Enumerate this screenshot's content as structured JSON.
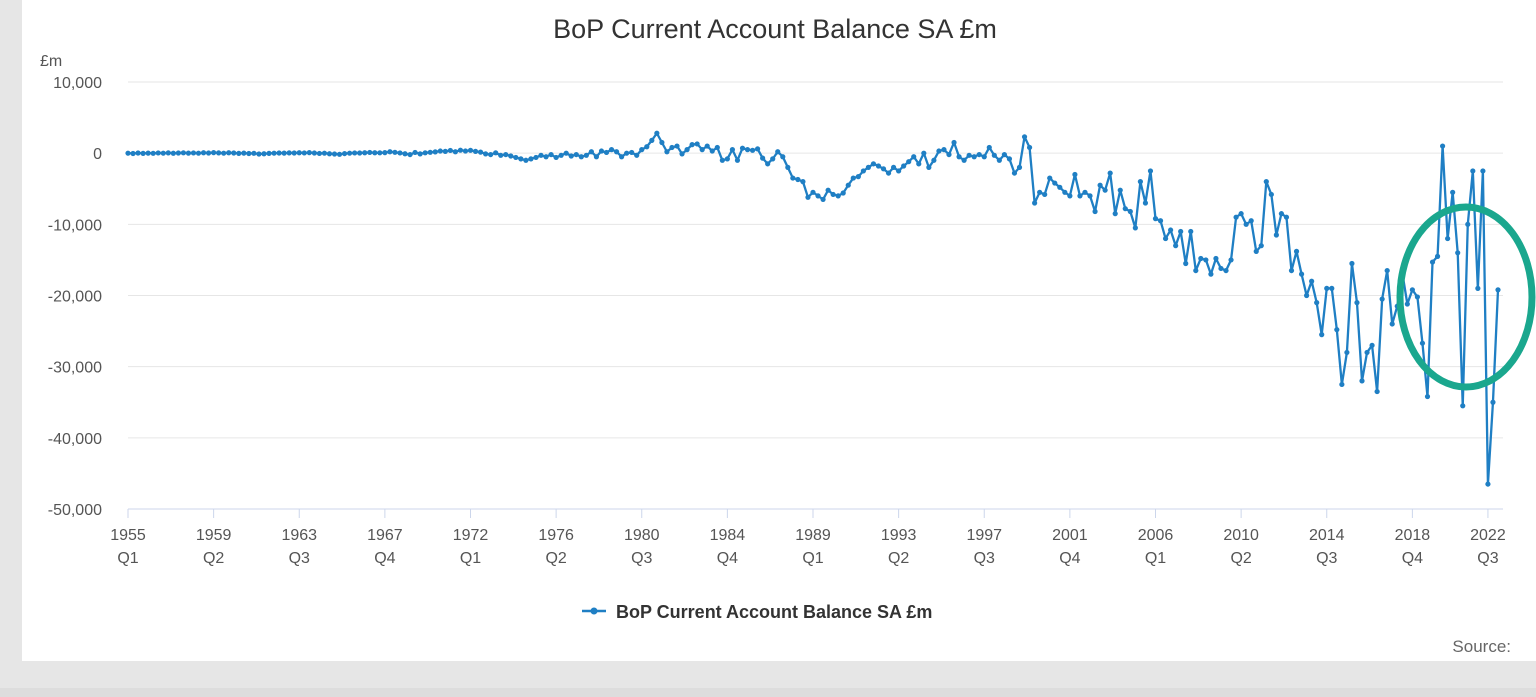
{
  "chart_data": {
    "type": "line",
    "title": "BoP Current Account Balance SA £m",
    "ylabel": "£m",
    "xlabel": "",
    "source_label": "Source:",
    "ylim": [
      -50000,
      10000
    ],
    "y_ticks": [
      10000,
      0,
      -10000,
      -20000,
      -30000,
      -40000,
      -50000
    ],
    "y_tick_labels": [
      "10,000",
      "0",
      "-10,000",
      "-20,000",
      "-30,000",
      "-40,000",
      "-50,000"
    ],
    "x_tick_labels": [
      {
        "year": "1955",
        "quarter": "Q1",
        "index": 0
      },
      {
        "year": "1959",
        "quarter": "Q2",
        "index": 17
      },
      {
        "year": "1963",
        "quarter": "Q3",
        "index": 34
      },
      {
        "year": "1967",
        "quarter": "Q4",
        "index": 51
      },
      {
        "year": "1972",
        "quarter": "Q1",
        "index": 68
      },
      {
        "year": "1976",
        "quarter": "Q2",
        "index": 85
      },
      {
        "year": "1980",
        "quarter": "Q3",
        "index": 102
      },
      {
        "year": "1984",
        "quarter": "Q4",
        "index": 119
      },
      {
        "year": "1989",
        "quarter": "Q1",
        "index": 136
      },
      {
        "year": "1993",
        "quarter": "Q2",
        "index": 153
      },
      {
        "year": "1997",
        "quarter": "Q3",
        "index": 170
      },
      {
        "year": "2001",
        "quarter": "Q4",
        "index": 187
      },
      {
        "year": "2006",
        "quarter": "Q1",
        "index": 204
      },
      {
        "year": "2010",
        "quarter": "Q2",
        "index": 221
      },
      {
        "year": "2014",
        "quarter": "Q3",
        "index": 238
      },
      {
        "year": "2018",
        "quarter": "Q4",
        "index": 255
      },
      {
        "year": "2022",
        "quarter": "Q3",
        "index": 270
      }
    ],
    "grid": "horizontal",
    "legend_position": "bottom-center",
    "series": [
      {
        "name": "BoP Current Account Balance SA £m",
        "color": "#1f7fc4",
        "start_period": "1955 Q1",
        "end_period": "2022 Q4",
        "values": [
          0,
          -50,
          20,
          -30,
          10,
          -20,
          30,
          0,
          40,
          -10,
          20,
          50,
          10,
          30,
          0,
          60,
          20,
          80,
          40,
          0,
          60,
          20,
          -30,
          10,
          -50,
          -20,
          -120,
          -80,
          -30,
          0,
          20,
          10,
          40,
          20,
          60,
          30,
          80,
          20,
          -40,
          0,
          -80,
          -120,
          -160,
          -60,
          0,
          30,
          20,
          60,
          100,
          60,
          50,
          80,
          200,
          120,
          30,
          -80,
          -200,
          100,
          -100,
          50,
          120,
          180,
          300,
          250,
          380,
          200,
          420,
          300,
          400,
          250,
          150,
          -100,
          -200,
          50,
          -300,
          -200,
          -400,
          -600,
          -800,
          -1000,
          -800,
          -600,
          -300,
          -500,
          -200,
          -600,
          -300,
          0,
          -400,
          -200,
          -500,
          -300,
          200,
          -500,
          300,
          100,
          500,
          200,
          -500,
          0,
          100,
          -300,
          500,
          900,
          1800,
          2800,
          1500,
          200,
          800,
          1000,
          -100,
          500,
          1200,
          1300,
          500,
          1000,
          300,
          800,
          -1000,
          -800,
          500,
          -1000,
          700,
          500,
          400,
          600,
          -700,
          -1500,
          -800,
          200,
          -500,
          -2000,
          -3500,
          -3700,
          -4000,
          -6200,
          -5500,
          -6000,
          -6500,
          -5200,
          -5800,
          -6000,
          -5600,
          -4500,
          -3500,
          -3300,
          -2500,
          -2000,
          -1500,
          -1800,
          -2200,
          -2800,
          -2000,
          -2500,
          -1800,
          -1200,
          -500,
          -1500,
          0,
          -2000,
          -1000,
          300,
          500,
          -200,
          1500,
          -500,
          -1000,
          -300,
          -500,
          -200,
          -500,
          800,
          -300,
          -1000,
          -200,
          -800,
          -2800,
          -2000,
          2300,
          800,
          -7000,
          -5500,
          -5800,
          -3500,
          -4200,
          -4800,
          -5500,
          -6000,
          -3000,
          -6000,
          -5500,
          -6000,
          -8200,
          -4500,
          -5200,
          -2800,
          -8500,
          -5200,
          -7800,
          -8200,
          -10500,
          -4000,
          -7000,
          -2500,
          -9200,
          -9500,
          -12000,
          -10800,
          -13000,
          -11000,
          -15500,
          -11000,
          -16500,
          -14800,
          -15000,
          -17000,
          -14800,
          -16200,
          -16500,
          -15000,
          -9000,
          -8500,
          -10000,
          -9500,
          -13800,
          -13000,
          -4000,
          -5800,
          -11500,
          -8500,
          -9000,
          -16500,
          -13800,
          -17000,
          -20000,
          -18000,
          -21000,
          -25500,
          -19000,
          -19000,
          -24800,
          -32500,
          -28000,
          -15500,
          -21000,
          -32000,
          -28000,
          -27000,
          -33500,
          -20500,
          -16500,
          -24000,
          -21500,
          -16800,
          -21200,
          -19200,
          -20200,
          -26700,
          -34200,
          -15300,
          -14500,
          1000,
          -12000,
          -5500,
          -14000,
          -35500,
          -10000,
          -2500,
          -19000,
          -2500,
          -46500,
          -35000,
          -19200
        ]
      }
    ],
    "annotations": [
      {
        "type": "ellipse",
        "color": "#1aa78e"
      }
    ]
  }
}
